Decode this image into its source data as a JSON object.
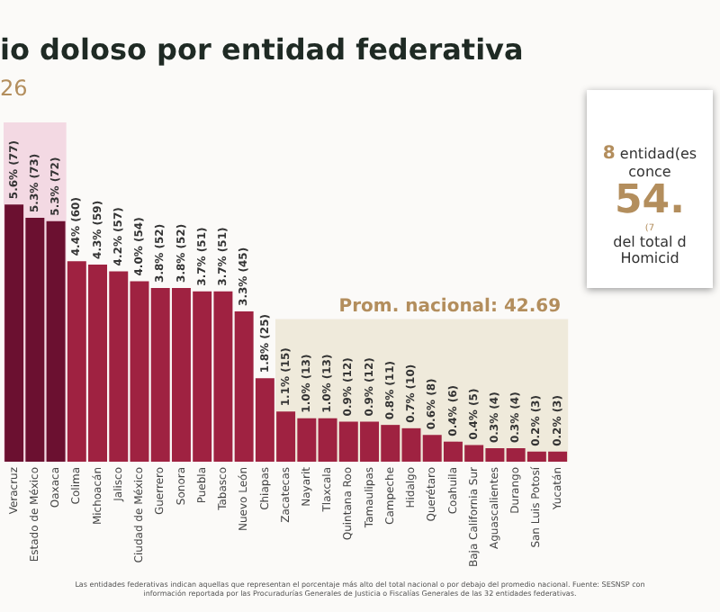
{
  "chart_data": {
    "type": "bar",
    "title": "io doloso por entidad federativa",
    "subtitle": "26",
    "categories": [
      "Veracruz",
      "Estado de México",
      "Oaxaca",
      "Colima",
      "Michoacán",
      "Jalisco",
      "Ciudad de México",
      "Guerrero",
      "Sonora",
      "Puebla",
      "Tabasco",
      "Nuevo León",
      "Chiapas",
      "Zacatecas",
      "Nayarit",
      "Tlaxcala",
      "Quintana Roo",
      "Tamaulipas",
      "Campeche",
      "Hidalgo",
      "Querétaro",
      "Coahuila",
      "Baja California Sur",
      "Aguascalientes",
      "Durango",
      "San Luis Potosí",
      "Yucatán"
    ],
    "values": [
      77,
      73,
      72,
      60,
      59,
      57,
      54,
      52,
      52,
      51,
      51,
      45,
      25,
      15,
      13,
      13,
      12,
      12,
      11,
      10,
      8,
      6,
      5,
      4,
      4,
      3,
      3
    ],
    "value_labels": [
      "5.6% (77)",
      "5.3% (73)",
      "5.3% (72)",
      "4.4% (60)",
      "4.3% (59)",
      "4.2% (57)",
      "4.0% (54)",
      "3.8% (52)",
      "3.8% (52)",
      "3.7% (51)",
      "3.7% (51)",
      "3.3% (45)",
      "1.8% (25)",
      "1.1% (15)",
      "1.0% (13)",
      "1.0% (13)",
      "0.9% (12)",
      "0.9% (12)",
      "0.8% (11)",
      "0.7% (10)",
      "0.6% (8)",
      "0.4% (6)",
      "0.4% (5)",
      "0.3% (4)",
      "0.3% (4)",
      "0.2% (3)",
      "0.2% (3)"
    ],
    "colors": [
      "#6b1030",
      "#6b1030",
      "#6b1030",
      "#9f2241",
      "#9f2241",
      "#9f2241",
      "#9f2241",
      "#9f2241",
      "#9f2241",
      "#9f2241",
      "#9f2241",
      "#9f2241",
      "#9f2241",
      "#9f2241",
      "#9f2241",
      "#9f2241",
      "#9f2241",
      "#9f2241",
      "#9f2241",
      "#9f2241",
      "#9f2241",
      "#9f2241",
      "#9f2241",
      "#9f2241",
      "#9f2241",
      "#9f2241",
      "#9f2241"
    ],
    "bands": [
      {
        "axis": "x",
        "from": "Veracruz",
        "to": "Oaxaca",
        "color": "#f3d9e3"
      },
      {
        "axis": "y",
        "from": 0,
        "to": 42.69,
        "label": "Prom. nacional: 42.69",
        "color": "#efeadb"
      }
    ],
    "annotations": [
      "8 entidad(es",
      "conce",
      "54.",
      "(7",
      "del total d",
      "Homicid",
      "Las entidades federativas indican aquellas que representan el porcentaje más alto del total nacional o por debajo del promedio nacional. Fuente: SESNSP con información reportada por las Procuradurías Generales de Justicia o Fiscalías Generales de las 32 entidades federativas."
    ],
    "grid": false,
    "legend": false
  }
}
